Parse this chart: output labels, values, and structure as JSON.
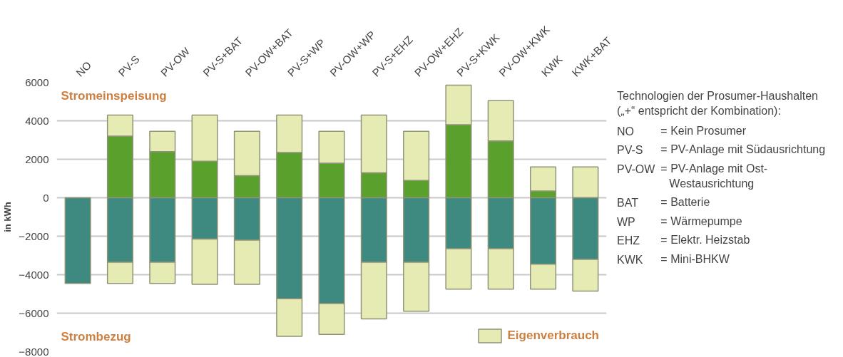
{
  "chart_data": {
    "type": "bar",
    "stacked": true,
    "ylabel": "in kWh",
    "categories": [
      "NO",
      "PV-S",
      "PV-OW",
      "PV-S+BAT",
      "PV-OW+BAT",
      "PV-S+WP",
      "PV-OW+WP",
      "PV-S+EHZ",
      "PV-OW+EHZ",
      "PV-S+KWK",
      "PV-OW+KWK",
      "KWK",
      "KWK+BAT"
    ],
    "series": [
      {
        "color": "#5aa02c",
        "values": [
          null,
          3200,
          2400,
          1900,
          1150,
          2350,
          1800,
          1300,
          900,
          3800,
          2950,
          350,
          0
        ]
      },
      {
        "name": "Eigenverbrauch",
        "color": "#e6ebb4",
        "values": [
          null,
          1100,
          1050,
          2400,
          2300,
          1950,
          1650,
          3000,
          2550,
          2050,
          2100,
          1250,
          1600
        ]
      },
      {
        "color": "#3f8a80",
        "values": [
          -4450,
          -3350,
          -3350,
          -2150,
          -2200,
          -5250,
          -5500,
          -3350,
          -3350,
          -2650,
          -2650,
          -3450,
          -3200
        ]
      },
      {
        "color": "#e6ebb4",
        "values": [
          null,
          -1100,
          -1100,
          -2350,
          -2300,
          -1950,
          -1600,
          -2950,
          -2550,
          -2100,
          -2100,
          -1300,
          -1650
        ]
      }
    ],
    "ylim": [
      -8000,
      6000
    ],
    "yticks": [
      -8000,
      -6000,
      -4000,
      -2000,
      0,
      2000,
      4000,
      6000
    ],
    "grid": "y",
    "legend": "bottom right",
    "annotations": [
      "Stromeinspeisung",
      "Strombezug",
      "Technologien der Prosumer-Haushalten („+“ entspricht der Kombination):",
      "NO = Kein Prosumer",
      "PV-S = PV-Anlage mit Südausrichtung",
      "PV-OW = PV-Anlage mit Ost-Westausrichtung",
      "BAT = Batterie",
      "WP = Wärmepumpe",
      "EHZ = Elektr. Heizstab",
      "KWK = Mini-BHKW"
    ]
  }
}
